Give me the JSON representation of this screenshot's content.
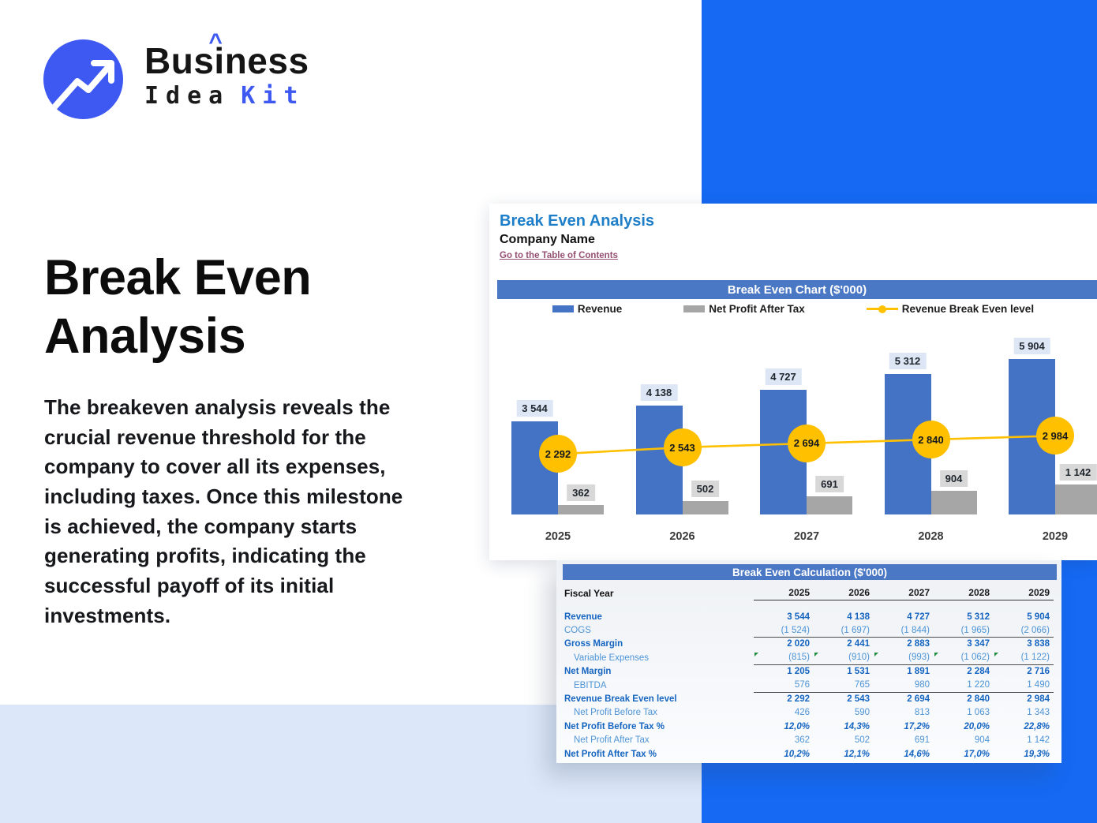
{
  "brand": {
    "line1_pre": "Bus",
    "line1_i": "i",
    "line1_post": "ness",
    "caret": "^",
    "line2_dark": "Idea",
    "line2_accent": "Kit"
  },
  "hero": {
    "title_line1": "Break Even",
    "title_line2": "Analysis",
    "description": "The breakeven analysis reveals the crucial revenue threshold for the company to cover all its expenses, including taxes. Once this milestone is achieved, the company starts generating profits, indicating the successful payoff of its initial investments."
  },
  "sheet": {
    "title": "Break Even Analysis",
    "company": "Company Name",
    "toc_link": "Go to the Table of Contents",
    "chart_header": "Break Even Chart ($'000)",
    "table_header": "Break Even Calculation ($'000)"
  },
  "chart_data": {
    "type": "bar",
    "title": "Break Even Chart ($'000)",
    "categories": [
      "2025",
      "2026",
      "2027",
      "2028",
      "2029"
    ],
    "series": [
      {
        "name": "Revenue",
        "type": "bar",
        "color": "#4472C4",
        "values": [
          3544,
          4138,
          4727,
          5312,
          5904
        ],
        "labels": [
          "3 544",
          "4 138",
          "4 727",
          "5 312",
          "5 904"
        ]
      },
      {
        "name": "Net Profit After Tax",
        "type": "bar",
        "color": "#A6A6A6",
        "values": [
          362,
          502,
          691,
          904,
          1142
        ],
        "labels": [
          "362",
          "502",
          "691",
          "904",
          "1 142"
        ]
      },
      {
        "name": "Revenue Break Even level",
        "type": "line",
        "color": "#FFC000",
        "values": [
          2292,
          2543,
          2694,
          2840,
          2984
        ],
        "labels": [
          "2 292",
          "2 543",
          "2 694",
          "2 840",
          "2 984"
        ]
      }
    ],
    "legend_position": "top",
    "grid": false,
    "ylim": [
      0,
      7300
    ]
  },
  "table": {
    "fiscal_year_label": "Fiscal Year",
    "years": [
      "2025",
      "2026",
      "2027",
      "2028",
      "2029"
    ],
    "rows": [
      {
        "label": "Revenue",
        "style": "bold",
        "values": [
          "3 544",
          "4 138",
          "4 727",
          "5 312",
          "5 904"
        ]
      },
      {
        "label": "COGS",
        "style": "regular",
        "rule": true,
        "values": [
          "(1 524)",
          "(1 697)",
          "(1 844)",
          "(1 965)",
          "(2 066)"
        ]
      },
      {
        "label": "Gross Margin",
        "style": "bold",
        "values": [
          "2 020",
          "2 441",
          "2 883",
          "3 347",
          "3 838"
        ]
      },
      {
        "label": "Variable Expenses",
        "style": "indent",
        "rule": true,
        "flags": true,
        "values": [
          "(815)",
          "(910)",
          "(993)",
          "(1 062)",
          "(1 122)"
        ]
      },
      {
        "label": "Net Margin",
        "style": "bold",
        "values": [
          "1 205",
          "1 531",
          "1 891",
          "2 284",
          "2 716"
        ]
      },
      {
        "label": "EBITDA",
        "style": "indent",
        "rule": true,
        "values": [
          "576",
          "765",
          "980",
          "1 220",
          "1 490"
        ]
      },
      {
        "label": "Revenue Break Even level",
        "style": "bold",
        "values": [
          "2 292",
          "2 543",
          "2 694",
          "2 840",
          "2 984"
        ]
      },
      {
        "label": "Net Profit Before Tax",
        "style": "indent",
        "values": [
          "426",
          "590",
          "813",
          "1 063",
          "1 343"
        ]
      },
      {
        "label": "Net Profit Before Tax %",
        "style": "pct",
        "values": [
          "12,0%",
          "14,3%",
          "17,2%",
          "20,0%",
          "22,8%"
        ]
      },
      {
        "label": "Net Profit After Tax",
        "style": "indent",
        "values": [
          "362",
          "502",
          "691",
          "904",
          "1 142"
        ]
      },
      {
        "label": "Net Profit After Tax %",
        "style": "pct",
        "values": [
          "10,2%",
          "12,1%",
          "14,6%",
          "17,0%",
          "19,3%"
        ]
      }
    ]
  },
  "colors": {
    "panel_blue": "#1569F2",
    "light_blue_band": "#DCE8F9",
    "logo_blue": "#3E58F2",
    "excel_header_blue": "#4B78C4",
    "bar_blue": "#4472C4",
    "bar_gray": "#A6A6A6",
    "breakeven_yellow": "#FFC000",
    "sheet_title_blue": "#1E7EC8",
    "link_maroon": "#954F72",
    "table_bold_blue": "#1565C0",
    "table_light_blue": "#4D94D6"
  }
}
